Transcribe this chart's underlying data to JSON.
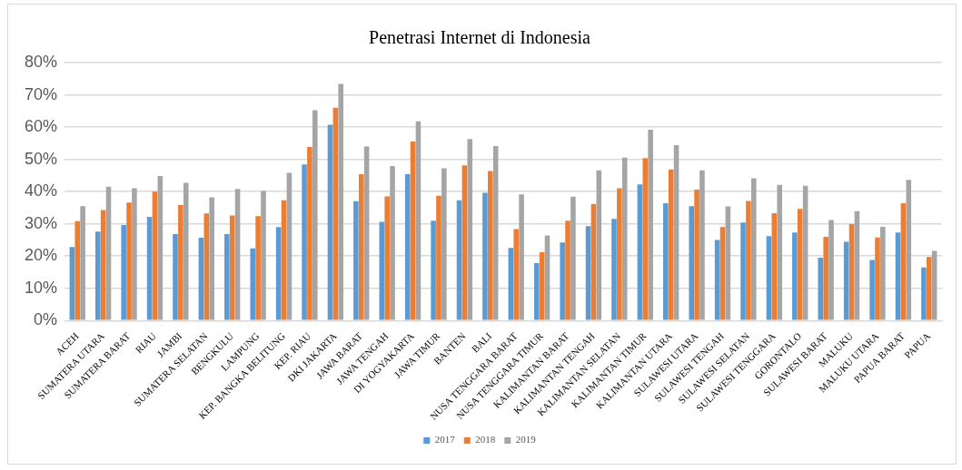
{
  "chart_data": {
    "type": "bar",
    "title": "Penetrasi Internet di Indonesia",
    "categories": [
      "ACEH",
      "SUMATERA UTARA",
      "SUMATERA BARAT",
      "RIAU",
      "JAMBI",
      "SUMATERA SELATAN",
      "BENGKULU",
      "LAMPUNG",
      "KEP. BANGKA BELITUNG",
      "KEP. RIAU",
      "DKI JAKARTA",
      "JAWA BARAT",
      "JAWA TENGAH",
      "DI YOGYAKARTA",
      "JAWA TIMUR",
      "BANTEN",
      "BALI",
      "NUSA TENGGARA BARAT",
      "NUSA TENGGARA TIMUR",
      "KALIMANTAN BARAT",
      "KALIMANTAN TENGAH",
      "KALIMANTAN SELATAN",
      "KALIMANTAN TIMUR",
      "KALIMANTAN UTARA",
      "SULAWESI UTARA",
      "SULAWESI TENGAH",
      "SULAWESI SELATAN",
      "SULAWESI TENGGARA",
      "GORONTALO",
      "SULAWESI BARAT",
      "MALUKU",
      "MALUKU UTARA",
      "PAPUA BARAT",
      "PAPUA"
    ],
    "series": [
      {
        "name": "2017",
        "color": "#5b9bd5",
        "values": [
          22.8,
          27.6,
          29.6,
          32.2,
          26.8,
          25.7,
          26.8,
          22.4,
          29.0,
          48.4,
          60.7,
          37.0,
          30.6,
          45.4,
          31.0,
          37.3,
          39.6,
          22.5,
          17.8,
          24.2,
          29.3,
          31.5,
          42.2,
          36.4,
          35.5,
          25.0,
          30.4,
          26.2,
          27.3,
          19.5,
          24.4,
          18.8,
          27.3,
          16.5
        ]
      },
      {
        "name": "2018",
        "color": "#ed7d31",
        "values": [
          30.8,
          34.3,
          36.6,
          40.0,
          35.8,
          33.2,
          32.6,
          32.4,
          37.3,
          53.8,
          66.0,
          45.4,
          38.5,
          55.5,
          38.7,
          48.1,
          46.4,
          28.4,
          21.2,
          31.0,
          36.2,
          41.0,
          50.4,
          46.9,
          40.6,
          29.0,
          37.1,
          33.3,
          34.6,
          26.0,
          29.9,
          25.8,
          36.4,
          19.7
        ]
      },
      {
        "name": "2019",
        "color": "#a5a5a5",
        "values": [
          35.5,
          41.5,
          41.0,
          44.8,
          42.7,
          38.2,
          40.8,
          40.2,
          45.8,
          65.2,
          73.4,
          54.0,
          47.9,
          61.8,
          47.2,
          56.3,
          54.1,
          39.1,
          26.4,
          38.4,
          46.6,
          50.5,
          59.2,
          54.4,
          46.6,
          35.4,
          44.1,
          42.1,
          41.8,
          31.2,
          33.9,
          29.1,
          43.6,
          21.6
        ]
      }
    ],
    "ylim": [
      0,
      80
    ],
    "yticks": [
      {
        "value": 0,
        "label": "0%"
      },
      {
        "value": 10,
        "label": "10%"
      },
      {
        "value": 20,
        "label": "20%"
      },
      {
        "value": 30,
        "label": "30%"
      },
      {
        "value": 40,
        "label": "40%"
      },
      {
        "value": 50,
        "label": "50%"
      },
      {
        "value": 60,
        "label": "60%"
      },
      {
        "value": 70,
        "label": "70%"
      },
      {
        "value": 80,
        "label": "80%"
      }
    ],
    "grid": "y",
    "legend": "bottom"
  }
}
